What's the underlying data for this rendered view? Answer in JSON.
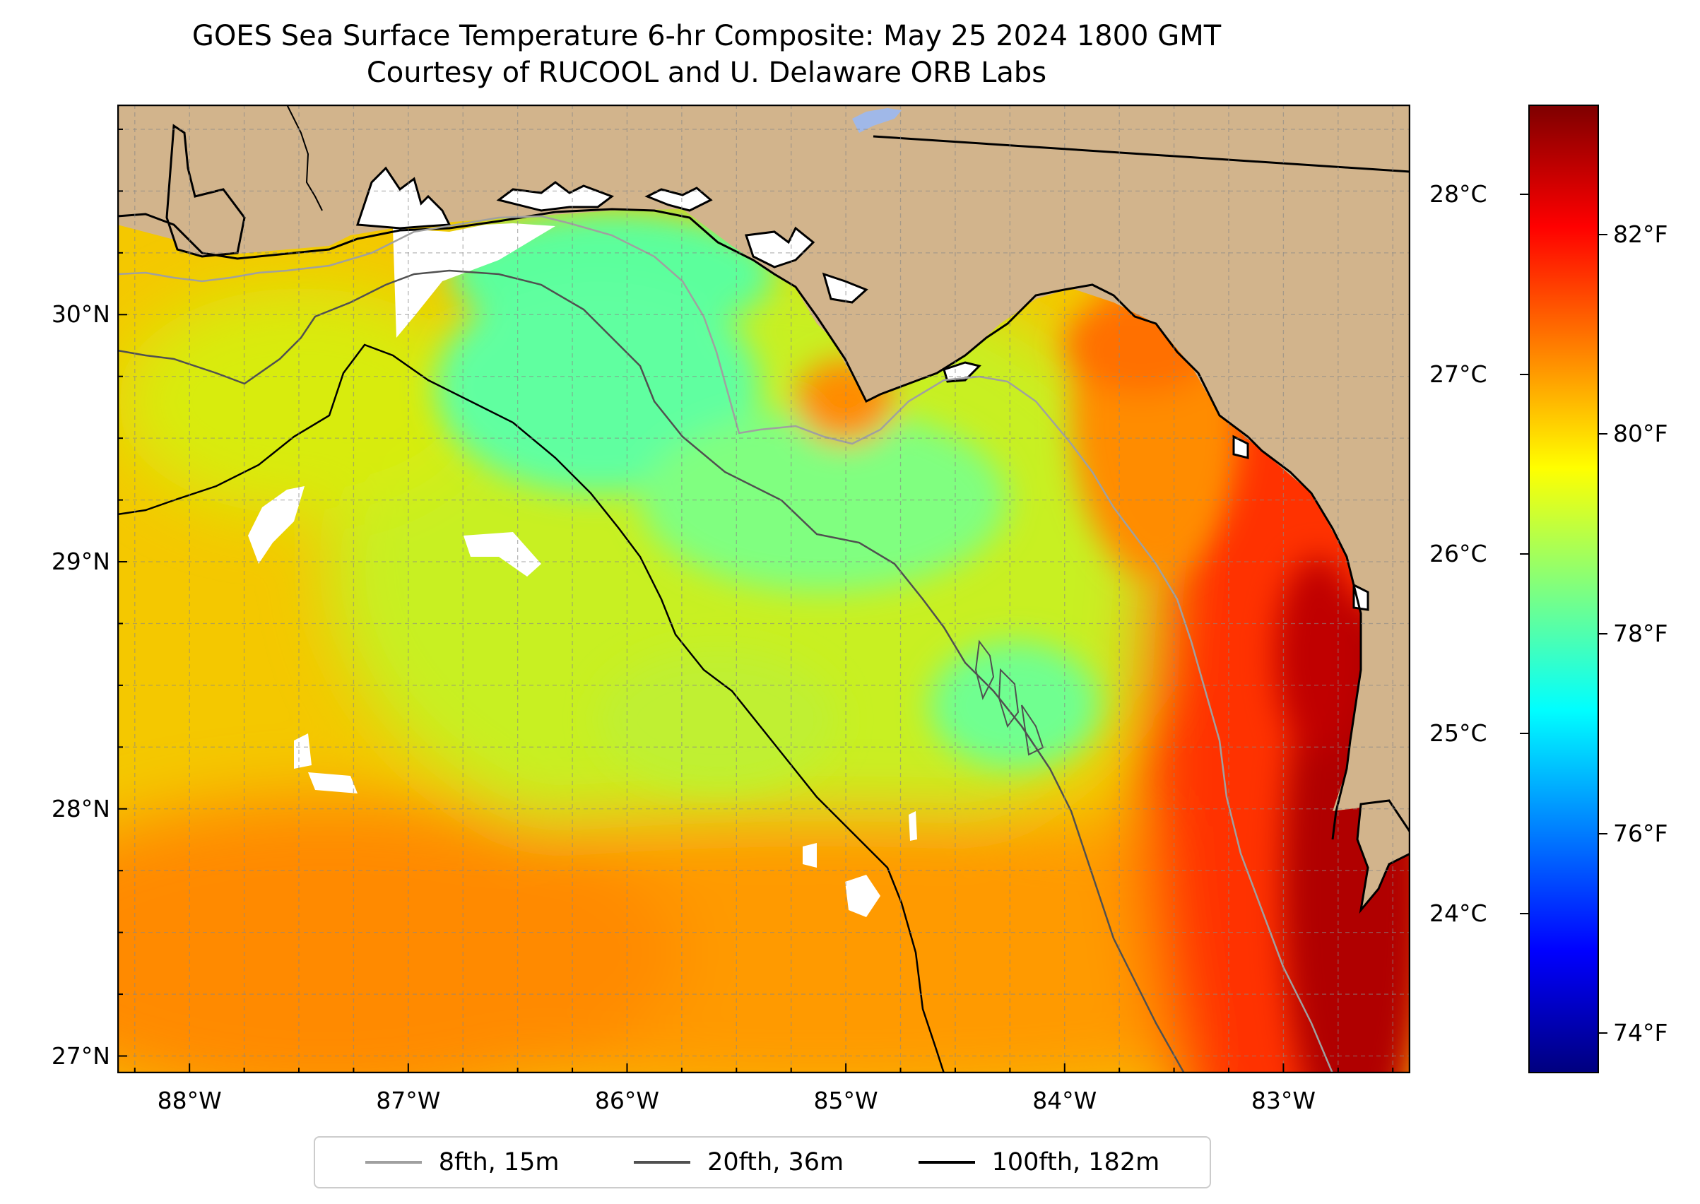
{
  "title": "GOES Sea Surface Temperature 6-hr Composite: May 25 2024 1800 GMT",
  "subtitle": "Courtesy of RUCOOL and U. Delaware ORB Labs",
  "map": {
    "lon_range": [
      -88.33,
      -82.42
    ],
    "lat_range": [
      26.93,
      30.85
    ],
    "land_color": "#d2b48c",
    "nodata_color": "#ffffff",
    "lat_ticks": [
      {
        "value": 30,
        "label": "30°N"
      },
      {
        "value": 29,
        "label": "29°N"
      },
      {
        "value": 28,
        "label": "28°N"
      },
      {
        "value": 27,
        "label": "27°N"
      }
    ],
    "lon_ticks": [
      {
        "value": -88,
        "label": "88°W"
      },
      {
        "value": -87,
        "label": "87°W"
      },
      {
        "value": -86,
        "label": "86°W"
      },
      {
        "value": -85,
        "label": "85°W"
      },
      {
        "value": -84,
        "label": "84°W"
      },
      {
        "value": -83,
        "label": "83°W"
      }
    ]
  },
  "colorbar": {
    "range_f": [
      73.6,
      83.3
    ],
    "colormap": "jet",
    "fahrenheit_ticks": [
      {
        "value": 82,
        "label": "82°F"
      },
      {
        "value": 80,
        "label": "80°F"
      },
      {
        "value": 78,
        "label": "78°F"
      },
      {
        "value": 76,
        "label": "76°F"
      },
      {
        "value": 74,
        "label": "74°F"
      }
    ],
    "celsius_ticks": [
      {
        "value": 28,
        "label": "28°C"
      },
      {
        "value": 27,
        "label": "27°C"
      },
      {
        "value": 26,
        "label": "26°C"
      },
      {
        "value": 25,
        "label": "25°C"
      },
      {
        "value": 24,
        "label": "24°C"
      }
    ]
  },
  "legend": {
    "items": [
      {
        "label": "8fth, 15m",
        "color": "#a0a0a0"
      },
      {
        "label": "20fth, 36m",
        "color": "#505050"
      },
      {
        "label": "100fth, 182m",
        "color": "#000000"
      }
    ]
  }
}
